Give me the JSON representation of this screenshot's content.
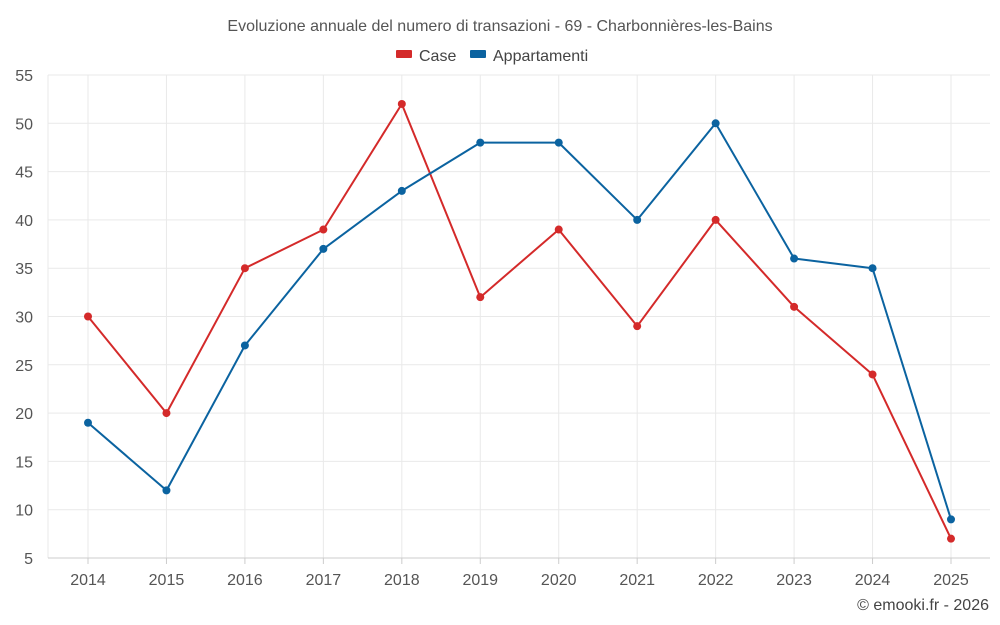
{
  "chart_data": {
    "type": "line",
    "title": "Evoluzione annuale del numero di transazioni - 69 - Charbonnières-les-Bains",
    "categories": [
      "2014",
      "2015",
      "2016",
      "2017",
      "2018",
      "2019",
      "2020",
      "2021",
      "2022",
      "2023",
      "2024",
      "2025"
    ],
    "series": [
      {
        "name": "Case",
        "color": "#d42a2a",
        "values": [
          30,
          20,
          35,
          39,
          52,
          32,
          39,
          29,
          40,
          31,
          24,
          7
        ]
      },
      {
        "name": "Appartamenti",
        "color": "#0b63a0",
        "values": [
          19,
          12,
          27,
          37,
          43,
          48,
          48,
          40,
          50,
          36,
          35,
          9
        ]
      }
    ],
    "ylim": [
      5,
      55
    ],
    "yticks": [
      5,
      10,
      15,
      20,
      25,
      30,
      35,
      40,
      45,
      50,
      55
    ],
    "xlabel": "",
    "ylabel": "",
    "grid": true,
    "legend_position": "top-center"
  },
  "credit": "© emooki.fr - 2026"
}
